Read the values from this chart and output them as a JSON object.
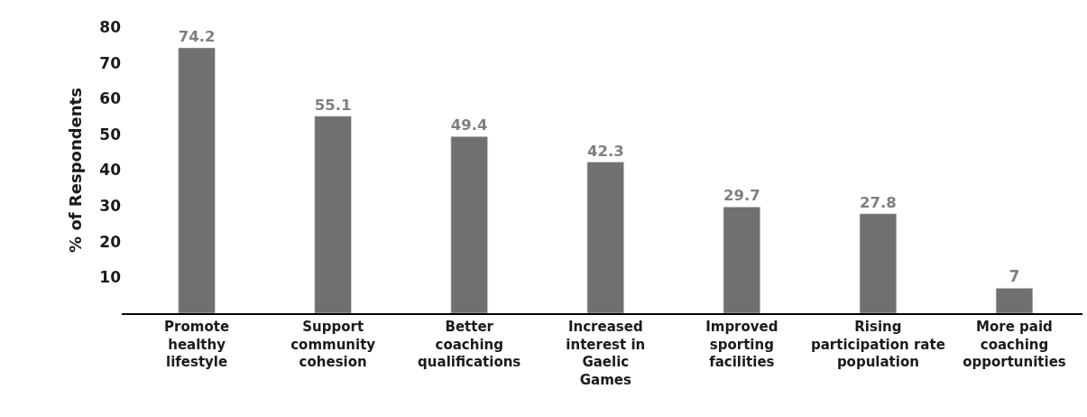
{
  "chart_data": {
    "type": "bar",
    "ylabel": "% of Respondents",
    "categories": [
      "Promote\nhealthy\nlifestyle",
      "Support\ncommunity\ncohesion",
      "Better\ncoaching\nqualifications",
      "Increased\ninterest in\nGaelic\nGames",
      "Improved\nsporting\nfacilities",
      "Rising\nparticipation rate\npopulation",
      "More paid\ncoaching\nopportunities"
    ],
    "values": [
      74.2,
      55.1,
      49.4,
      42.3,
      29.7,
      27.8,
      7
    ],
    "color": "#707070",
    "data_labels": true,
    "ylim": [
      0,
      80
    ],
    "yticks": [
      10,
      20,
      30,
      40,
      50,
      60,
      70,
      80
    ]
  }
}
